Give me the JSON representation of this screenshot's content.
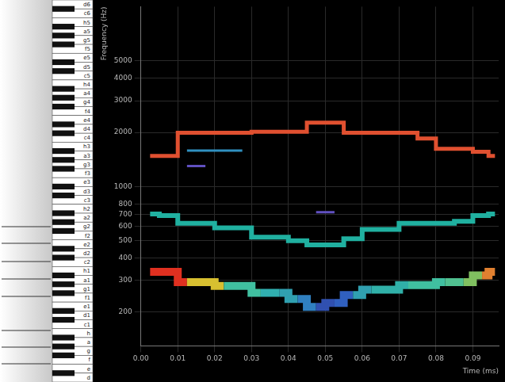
{
  "chart_data": {
    "type": "line",
    "xlabel": "Time (ms)",
    "ylabel": "Frequency (Hz)",
    "log": "y",
    "grid": true,
    "line_style": "stepped",
    "xlim": [
      0,
      0.097
    ],
    "xticks": [
      {
        "value": 0,
        "label": "0.00"
      },
      {
        "value": 0.01,
        "label": "0.01"
      },
      {
        "value": 0.02,
        "label": "0.02"
      },
      {
        "value": 0.03,
        "label": "0.03"
      },
      {
        "value": 0.04,
        "label": "0.04"
      },
      {
        "value": 0.05,
        "label": "0.05"
      },
      {
        "value": 0.06,
        "label": "0.06"
      },
      {
        "value": 0.07,
        "label": "0.07"
      },
      {
        "value": 0.08,
        "label": "0.08"
      },
      {
        "value": 0.09,
        "label": "0.09"
      }
    ],
    "ylim": [
      130,
      10000
    ],
    "yticks": [
      200,
      300,
      400,
      500,
      600,
      700,
      800,
      1000,
      2000,
      3000,
      4000,
      5000
    ],
    "x": [
      0.0025,
      0.0075,
      0.0125,
      0.0175,
      0.0225,
      0.0275,
      0.0325,
      0.0375,
      0.0425,
      0.0475,
      0.0525,
      0.0575,
      0.0625,
      0.0675,
      0.0725,
      0.0775,
      0.0825,
      0.0875,
      0.0925,
      0.096
    ],
    "series": [
      {
        "colors": [
          "#e03020",
          "#e03020",
          "#d8c030",
          "#d8c030",
          "#40c0a0",
          "#40c0a0",
          "#30b0b0",
          "#30a0b0",
          "#3080c0",
          "#3050b0",
          "#3060c0",
          "#30a0b0",
          "#30b0a8",
          "#30b0a8",
          "#40c0a0",
          "#40c0a0",
          "#50c090",
          "#80c060",
          "#e08030",
          "#e03020"
        ],
        "values": [
          335,
          335,
          294,
          294,
          280,
          280,
          256,
          256,
          237,
          214,
          225,
          249,
          267,
          267,
          283,
          283,
          294,
          294,
          320,
          335
        ]
      },
      {
        "color": "#20b0a0",
        "values": [
          703,
          690,
          625,
          625,
          589,
          589,
          523,
          523,
          500,
          474,
          474,
          512,
          577,
          577,
          625,
          625,
          625,
          640,
          690,
          703
        ]
      },
      {
        "color": "#e05030",
        "values": [
          1478,
          1478,
          1990,
          1990,
          1990,
          1990,
          2017,
          2017,
          2017,
          2263,
          2263,
          1990,
          1990,
          1990,
          1990,
          1850,
          1620,
          1620,
          1560,
          1478
        ]
      },
      {
        "color": "#3090c0",
        "values": [
          null,
          null,
          1585,
          1585,
          1585,
          1585,
          null,
          null,
          null,
          null,
          null,
          null,
          null,
          null,
          null,
          null,
          null,
          null,
          null,
          null
        ]
      },
      {
        "color": "#6050c0",
        "values": [
          null,
          null,
          1300,
          1300,
          null,
          null,
          null,
          null,
          null,
          720,
          720,
          null,
          null,
          null,
          null,
          null,
          null,
          null,
          null,
          null
        ]
      }
    ]
  },
  "keyboard": {
    "keys": [
      "d6",
      "c6",
      "h5",
      "a5",
      "g5",
      "f5",
      "e5",
      "d5",
      "c5",
      "h4",
      "a4",
      "g4",
      "f4",
      "e4",
      "d4",
      "c4",
      "h3",
      "a3",
      "g3",
      "f3",
      "e3",
      "d3",
      "c3",
      "h2",
      "a2",
      "g2",
      "f2",
      "e2",
      "d2",
      "c2",
      "h1",
      "a1",
      "g1",
      "f1",
      "e1",
      "d1",
      "c1",
      "h",
      "a",
      "g",
      "f",
      "e",
      "d"
    ]
  }
}
